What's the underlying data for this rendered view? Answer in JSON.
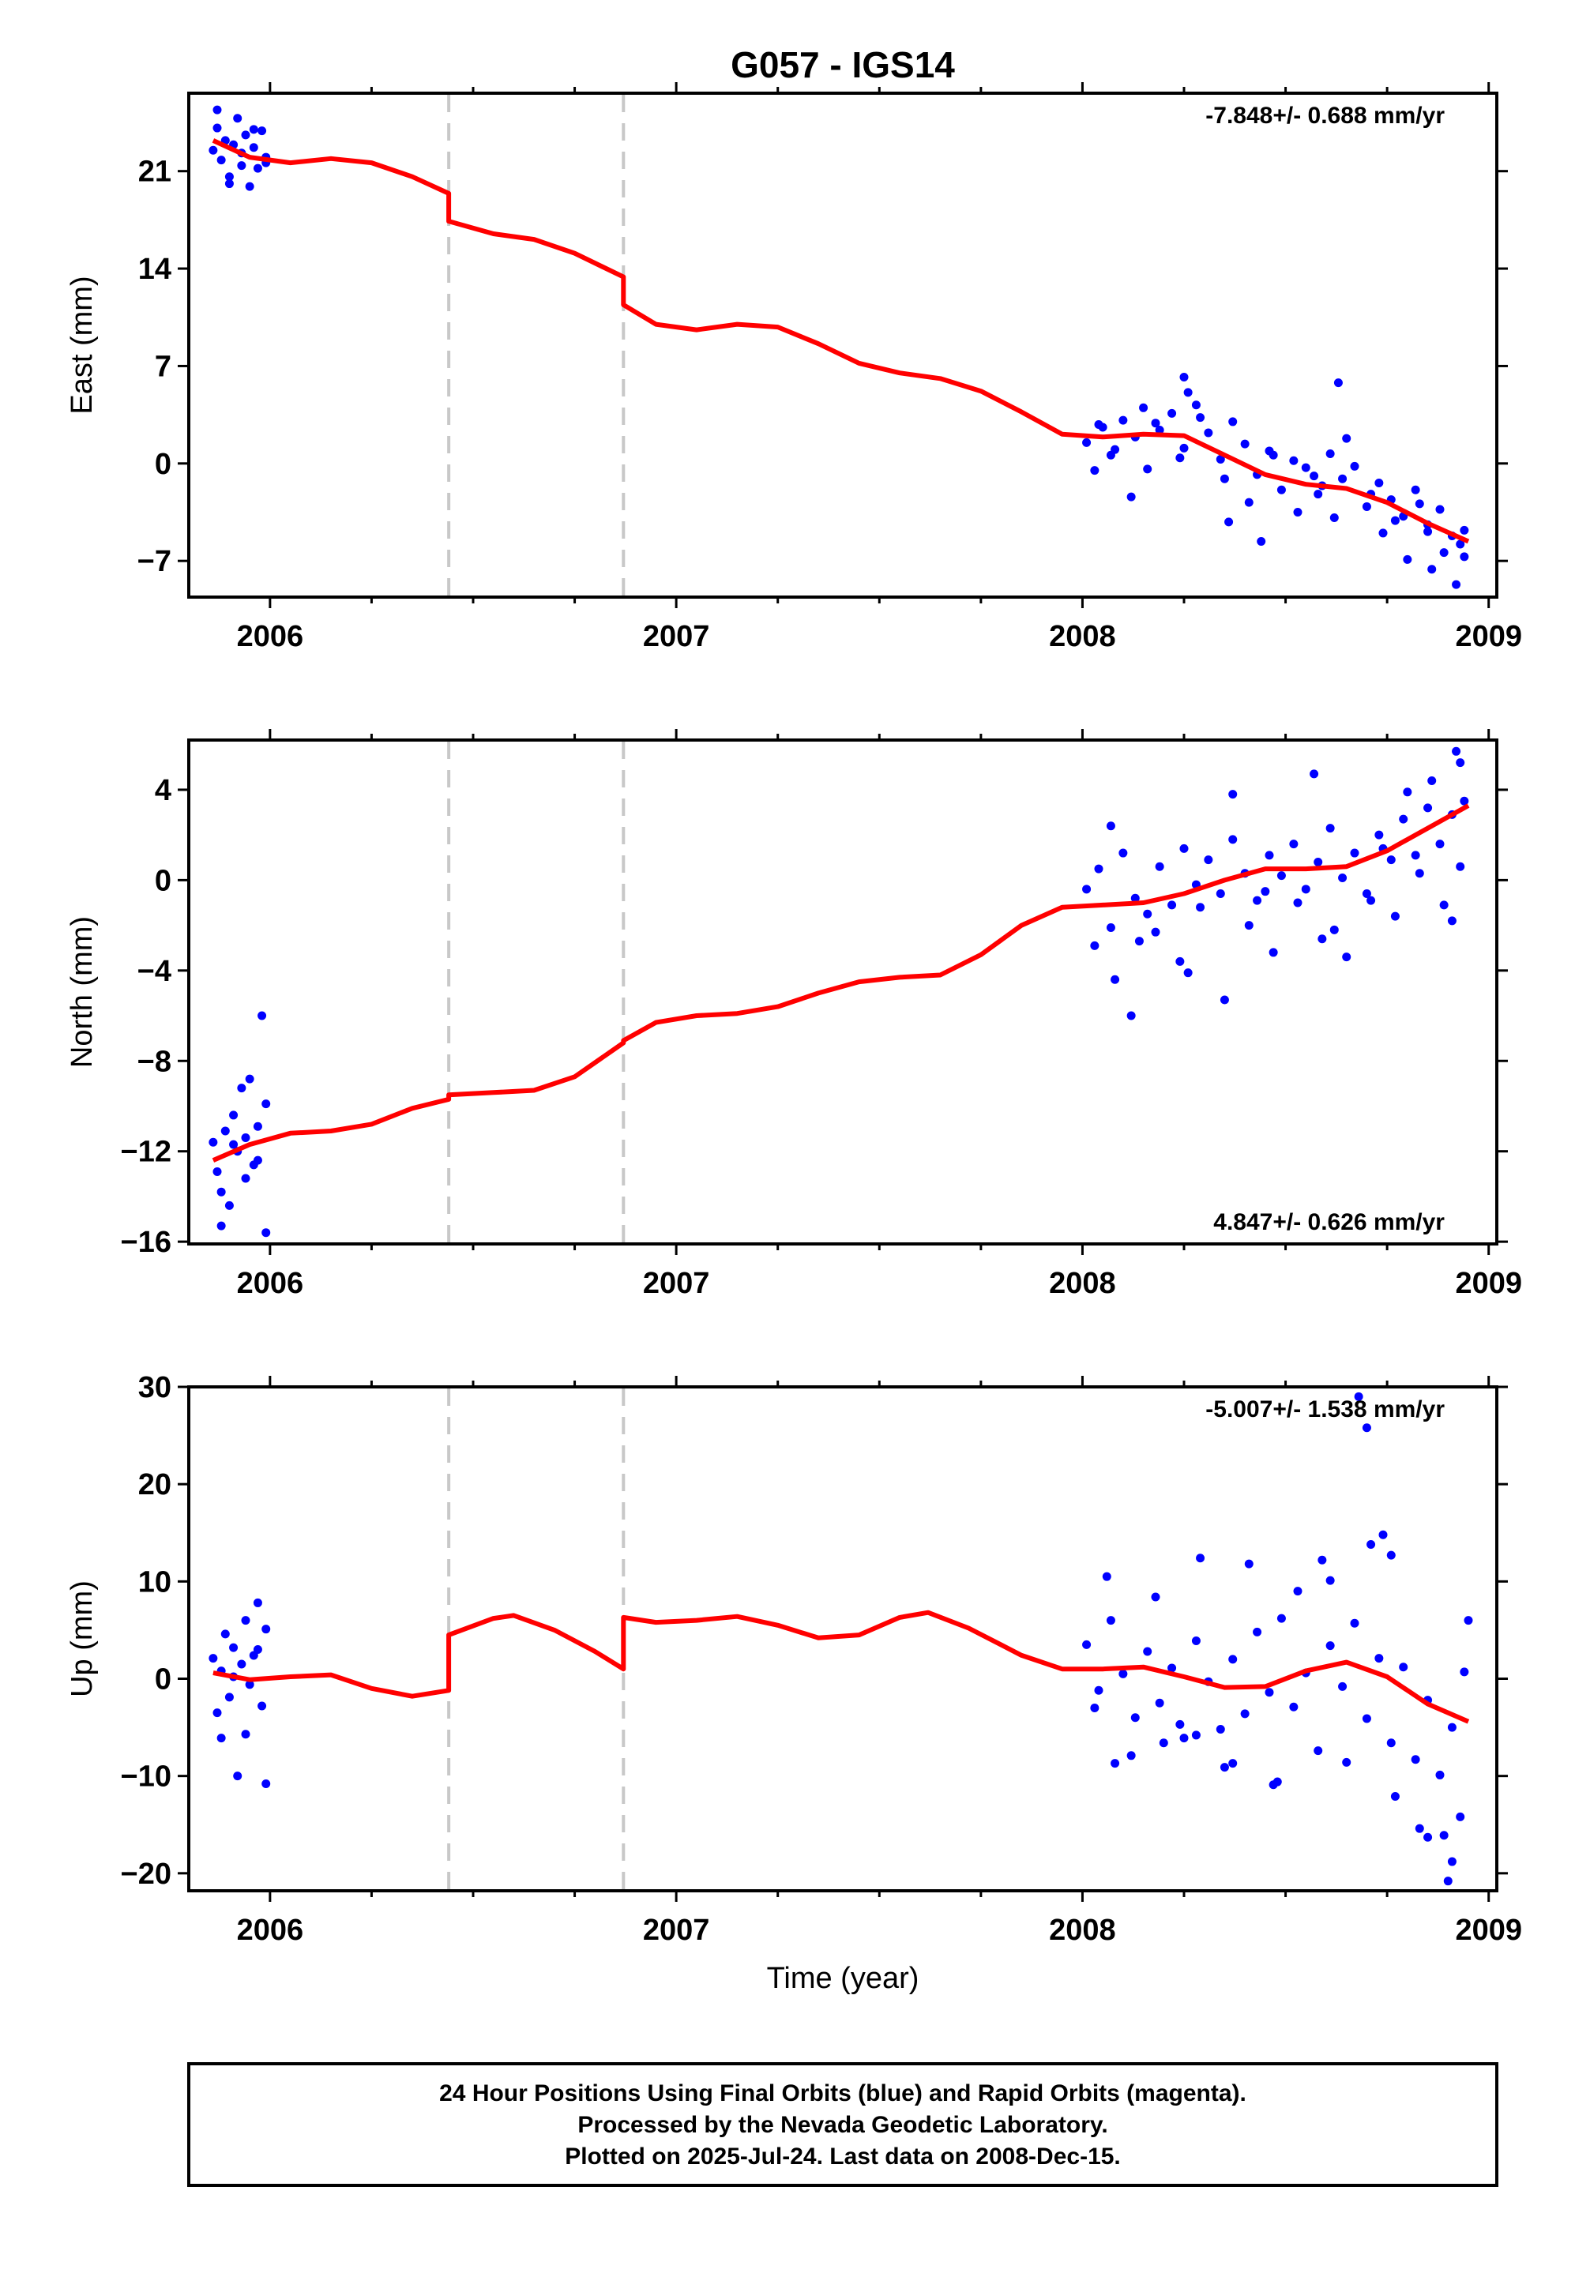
{
  "title": "G057 - IGS14",
  "xlabel": "Time (year)",
  "footer": {
    "lines": [
      "24 Hour Positions Using Final Orbits (blue) and Rapid Orbits (magenta).",
      "Processed by the Nevada Geodetic Laboratory.",
      "Plotted on 2025-Jul-24. Last data on 2008-Dec-15."
    ]
  },
  "colors": {
    "data": "#0000ff",
    "model": "#ff0000",
    "steps": "#c8c8c8",
    "frame": "#000000"
  },
  "chart_data": [
    {
      "type": "scatter",
      "title": "G057 - IGS14",
      "ylabel": "East (mm)",
      "xlabel": "",
      "xlim": [
        2005.8,
        2009.02
      ],
      "ylim": [
        -9.6,
        26.6
      ],
      "xticks": [
        "2006",
        "2007",
        "2008",
        "2009"
      ],
      "yticks": [
        "21",
        "14",
        "7",
        "0",
        "-7"
      ],
      "rate": "-7.848+/- 0.688 mm/yr",
      "rate_position": "top-right",
      "steps": [
        2006.44,
        2006.87
      ],
      "series": [
        {
          "role": "observed positions (blue)",
          "x": [
            2005.86,
            2005.87,
            2005.88,
            2005.89,
            2005.9,
            2005.91,
            2005.92,
            2005.93,
            2005.94,
            2005.95,
            2005.96,
            2005.97,
            2005.98,
            2005.99,
            2005.87,
            2005.9,
            2005.93,
            2005.96,
            2005.99,
            2008.01,
            2008.04,
            2008.07,
            2008.1,
            2008.13,
            2008.16,
            2008.19,
            2008.22,
            2008.25,
            2008.28,
            2008.31,
            2008.34,
            2008.37,
            2008.4,
            2008.43,
            2008.46,
            2008.49,
            2008.52,
            2008.55,
            2008.58,
            2008.61,
            2008.64,
            2008.67,
            2008.7,
            2008.73,
            2008.76,
            2008.79,
            2008.82,
            2008.85,
            2008.88,
            2008.91,
            2008.94,
            2008.03,
            2008.08,
            2008.12,
            2008.18,
            2008.24,
            2008.29,
            2008.35,
            2008.41,
            2008.47,
            2008.53,
            2008.59,
            2008.65,
            2008.71,
            2008.77,
            2008.83,
            2008.89,
            2008.93,
            2008.05,
            2008.15,
            2008.26,
            2008.36,
            2008.44,
            2008.57,
            2008.62,
            2008.74,
            2008.8,
            2008.86,
            2008.92,
            2008.25,
            2008.63,
            2008.85,
            2008.94
          ],
          "y": [
            22.5,
            24.1,
            21.8,
            23.2,
            20.1,
            22.9,
            24.8,
            21.4,
            23.6,
            19.9,
            22.7,
            21.2,
            23.9,
            22.0,
            25.4,
            20.6,
            22.3,
            24.0,
            21.6,
            1.5,
            2.8,
            0.6,
            3.1,
            1.9,
            -0.4,
            2.4,
            3.6,
            1.1,
            4.2,
            2.2,
            0.3,
            3.0,
            1.4,
            -0.8,
            0.9,
            -1.9,
            0.2,
            -0.3,
            -2.2,
            0.7,
            -1.1,
            -0.2,
            -3.1,
            -1.4,
            -2.6,
            -3.8,
            -1.9,
            -4.4,
            -3.3,
            -5.2,
            -4.8,
            -0.5,
            1.0,
            -2.4,
            2.9,
            0.4,
            3.3,
            -1.1,
            -2.8,
            0.6,
            -3.5,
            -1.6,
            1.8,
            -2.2,
            -4.1,
            -2.9,
            -6.4,
            -5.8,
            2.6,
            4.0,
            5.1,
            -4.2,
            -5.6,
            -0.9,
            -3.9,
            -5.0,
            -6.9,
            -7.6,
            -8.7,
            6.2,
            5.8,
            -4.9,
            -6.7
          ]
        },
        {
          "role": "model fit (red)",
          "x": [
            2005.86,
            2005.95,
            2006.05,
            2006.15,
            2006.25,
            2006.35,
            2006.44,
            2006.44,
            2006.55,
            2006.65,
            2006.75,
            2006.87,
            2006.87,
            2006.95,
            2007.05,
            2007.15,
            2007.25,
            2007.35,
            2007.45,
            2007.55,
            2007.65,
            2007.75,
            2007.85,
            2007.95,
            2008.05,
            2008.15,
            2008.25,
            2008.35,
            2008.45,
            2008.55,
            2008.65,
            2008.75,
            2008.85,
            2008.95
          ],
          "y": [
            23.2,
            22.0,
            21.6,
            21.9,
            21.6,
            20.6,
            19.4,
            17.4,
            16.5,
            16.1,
            15.1,
            13.4,
            11.4,
            10.0,
            9.6,
            10.0,
            9.8,
            8.6,
            7.2,
            6.5,
            6.1,
            5.2,
            3.7,
            2.1,
            1.9,
            2.1,
            2.0,
            0.6,
            -0.8,
            -1.5,
            -1.8,
            -2.8,
            -4.3,
            -5.6
          ]
        }
      ]
    },
    {
      "type": "scatter",
      "ylabel": "North (mm)",
      "xlabel": "",
      "xlim": [
        2005.8,
        2009.02
      ],
      "ylim": [
        -16.1,
        6.2
      ],
      "xticks": [
        "2006",
        "2007",
        "2008",
        "2009"
      ],
      "yticks": [
        "4",
        "0",
        "-4",
        "-8",
        "-12",
        "-16"
      ],
      "rate": "4.847+/- 0.626 mm/yr",
      "rate_position": "bottom-right",
      "steps": [
        2006.44,
        2006.87
      ],
      "series": [
        {
          "role": "observed positions (blue)",
          "x": [
            2005.86,
            2005.87,
            2005.88,
            2005.89,
            2005.9,
            2005.91,
            2005.92,
            2005.93,
            2005.94,
            2005.95,
            2005.96,
            2005.97,
            2005.98,
            2005.99,
            2005.88,
            2005.91,
            2005.94,
            2005.97,
            2005.99,
            2008.01,
            2008.04,
            2008.07,
            2008.1,
            2008.13,
            2008.16,
            2008.19,
            2008.22,
            2008.25,
            2008.28,
            2008.31,
            2008.34,
            2008.37,
            2008.4,
            2008.43,
            2008.46,
            2008.49,
            2008.52,
            2008.55,
            2008.58,
            2008.61,
            2008.64,
            2008.67,
            2008.7,
            2008.73,
            2008.76,
            2008.79,
            2008.82,
            2008.85,
            2008.88,
            2008.91,
            2008.94,
            2008.03,
            2008.08,
            2008.12,
            2008.18,
            2008.24,
            2008.29,
            2008.35,
            2008.41,
            2008.47,
            2008.53,
            2008.59,
            2008.65,
            2008.71,
            2008.77,
            2008.83,
            2008.89,
            2008.93,
            2008.07,
            2008.14,
            2008.26,
            2008.37,
            2008.45,
            2008.57,
            2008.62,
            2008.74,
            2008.8,
            2008.86,
            2008.92,
            2008.91,
            2008.93
          ],
          "y": [
            -11.6,
            -12.9,
            -13.8,
            -11.1,
            -14.4,
            -10.4,
            -12.0,
            -9.2,
            -11.4,
            -8.8,
            -12.6,
            -10.9,
            -6.0,
            -9.9,
            -15.3,
            -11.7,
            -13.2,
            -12.4,
            -15.6,
            -0.4,
            0.5,
            -2.1,
            1.2,
            -0.8,
            -1.5,
            0.6,
            -1.1,
            1.4,
            -0.2,
            0.9,
            -0.6,
            1.8,
            0.3,
            -0.9,
            1.1,
            0.2,
            1.6,
            -0.4,
            0.8,
            2.3,
            0.1,
            1.2,
            -0.6,
            2.0,
            0.9,
            2.7,
            1.1,
            3.2,
            1.6,
            2.9,
            3.5,
            -2.9,
            -4.4,
            -6.0,
            -2.3,
            -3.6,
            -1.2,
            -5.3,
            -2.0,
            -3.2,
            -1.0,
            -2.6,
            -3.4,
            -0.9,
            -1.6,
            0.3,
            -1.1,
            0.6,
            2.4,
            -2.7,
            -4.1,
            3.8,
            -0.5,
            4.7,
            -2.2,
            1.4,
            3.9,
            4.4,
            5.7,
            -1.8,
            5.2
          ]
        },
        {
          "role": "model fit (red)",
          "x": [
            2005.86,
            2005.95,
            2006.05,
            2006.15,
            2006.25,
            2006.35,
            2006.44,
            2006.44,
            2006.55,
            2006.65,
            2006.75,
            2006.87,
            2006.87,
            2006.95,
            2007.05,
            2007.15,
            2007.25,
            2007.35,
            2007.45,
            2007.55,
            2007.65,
            2007.75,
            2007.85,
            2007.95,
            2008.05,
            2008.15,
            2008.25,
            2008.35,
            2008.45,
            2008.55,
            2008.65,
            2008.75,
            2008.85,
            2008.95
          ],
          "y": [
            -12.4,
            -11.7,
            -11.2,
            -11.1,
            -10.8,
            -10.1,
            -9.7,
            -9.5,
            -9.4,
            -9.3,
            -8.7,
            -7.2,
            -7.1,
            -6.3,
            -6.0,
            -5.9,
            -5.6,
            -5.0,
            -4.5,
            -4.3,
            -4.2,
            -3.3,
            -2.0,
            -1.2,
            -1.1,
            -1.0,
            -0.6,
            0.0,
            0.5,
            0.5,
            0.6,
            1.3,
            2.3,
            3.3
          ]
        }
      ]
    },
    {
      "type": "scatter",
      "ylabel": "Up (mm)",
      "xlabel": "Time (year)",
      "xlim": [
        2005.8,
        2009.02
      ],
      "ylim": [
        -21.8,
        30.0
      ],
      "xticks": [
        "2006",
        "2007",
        "2008",
        "2009"
      ],
      "yticks": [
        "30",
        "20",
        "10",
        "0",
        "-10",
        "-20"
      ],
      "rate": "-5.007+/- 1.538 mm/yr",
      "rate_position": "top-right",
      "steps": [
        2006.44,
        2006.87
      ],
      "series": [
        {
          "role": "observed positions (blue)",
          "x": [
            2005.86,
            2005.87,
            2005.88,
            2005.89,
            2005.9,
            2005.91,
            2005.92,
            2005.93,
            2005.94,
            2005.95,
            2005.96,
            2005.97,
            2005.98,
            2005.99,
            2005.88,
            2005.91,
            2005.94,
            2005.97,
            2005.99,
            2008.01,
            2008.04,
            2008.07,
            2008.1,
            2008.13,
            2008.16,
            2008.19,
            2008.22,
            2008.25,
            2008.28,
            2008.31,
            2008.34,
            2008.37,
            2008.4,
            2008.43,
            2008.46,
            2008.49,
            2008.52,
            2008.55,
            2008.58,
            2008.61,
            2008.64,
            2008.67,
            2008.7,
            2008.73,
            2008.76,
            2008.79,
            2008.82,
            2008.85,
            2008.88,
            2008.91,
            2008.94,
            2008.03,
            2008.06,
            2008.12,
            2008.18,
            2008.24,
            2008.29,
            2008.35,
            2008.41,
            2008.47,
            2008.53,
            2008.59,
            2008.65,
            2008.71,
            2008.77,
            2008.83,
            2008.89,
            2008.93,
            2008.08,
            2008.2,
            2008.28,
            2008.37,
            2008.48,
            2008.61,
            2008.68,
            2008.7,
            2008.74,
            2008.76,
            2008.85,
            2008.9,
            2008.91,
            2008.95
          ],
          "y": [
            2.1,
            -3.5,
            0.8,
            4.6,
            -1.9,
            3.2,
            -10.0,
            1.5,
            6.0,
            -0.6,
            2.4,
            7.8,
            -2.8,
            5.1,
            -6.1,
            0.2,
            -5.7,
            3.0,
            -10.8,
            3.5,
            -1.2,
            6.0,
            0.5,
            -4.0,
            2.8,
            -2.5,
            1.1,
            -6.1,
            3.9,
            -0.3,
            -5.2,
            2.0,
            -3.6,
            4.8,
            -1.4,
            6.2,
            -2.9,
            0.6,
            -7.4,
            3.4,
            -0.8,
            5.7,
            -4.1,
            2.1,
            -6.6,
            1.2,
            -8.3,
            -2.2,
            -9.9,
            -5.0,
            0.7,
            -3.0,
            10.5,
            -7.9,
            8.4,
            -4.7,
            12.4,
            -9.1,
            11.8,
            -10.9,
            9.0,
            12.2,
            -8.6,
            13.8,
            -12.1,
            -15.4,
            -16.1,
            -14.2,
            -8.7,
            -6.6,
            -5.8,
            -8.7,
            -10.6,
            10.1,
            29.0,
            25.8,
            14.8,
            12.7,
            -16.3,
            -20.8,
            -18.8,
            6.0
          ]
        },
        {
          "role": "model fit (red)",
          "x": [
            2005.86,
            2005.95,
            2006.05,
            2006.15,
            2006.25,
            2006.35,
            2006.44,
            2006.44,
            2006.55,
            2006.6,
            2006.7,
            2006.8,
            2006.87,
            2006.87,
            2006.95,
            2007.05,
            2007.15,
            2007.25,
            2007.35,
            2007.45,
            2007.55,
            2007.62,
            2007.72,
            2007.85,
            2007.95,
            2008.05,
            2008.15,
            2008.25,
            2008.35,
            2008.45,
            2008.55,
            2008.65,
            2008.75,
            2008.85,
            2008.95
          ],
          "y": [
            0.6,
            -0.1,
            0.2,
            0.4,
            -1.0,
            -1.8,
            -1.2,
            4.5,
            6.2,
            6.5,
            5.0,
            2.8,
            1.0,
            6.3,
            5.8,
            6.0,
            6.4,
            5.5,
            4.2,
            4.5,
            6.3,
            6.8,
            5.2,
            2.4,
            1.0,
            1.0,
            1.2,
            0.2,
            -0.9,
            -0.8,
            0.8,
            1.7,
            0.2,
            -2.6,
            -4.4
          ]
        }
      ]
    }
  ]
}
